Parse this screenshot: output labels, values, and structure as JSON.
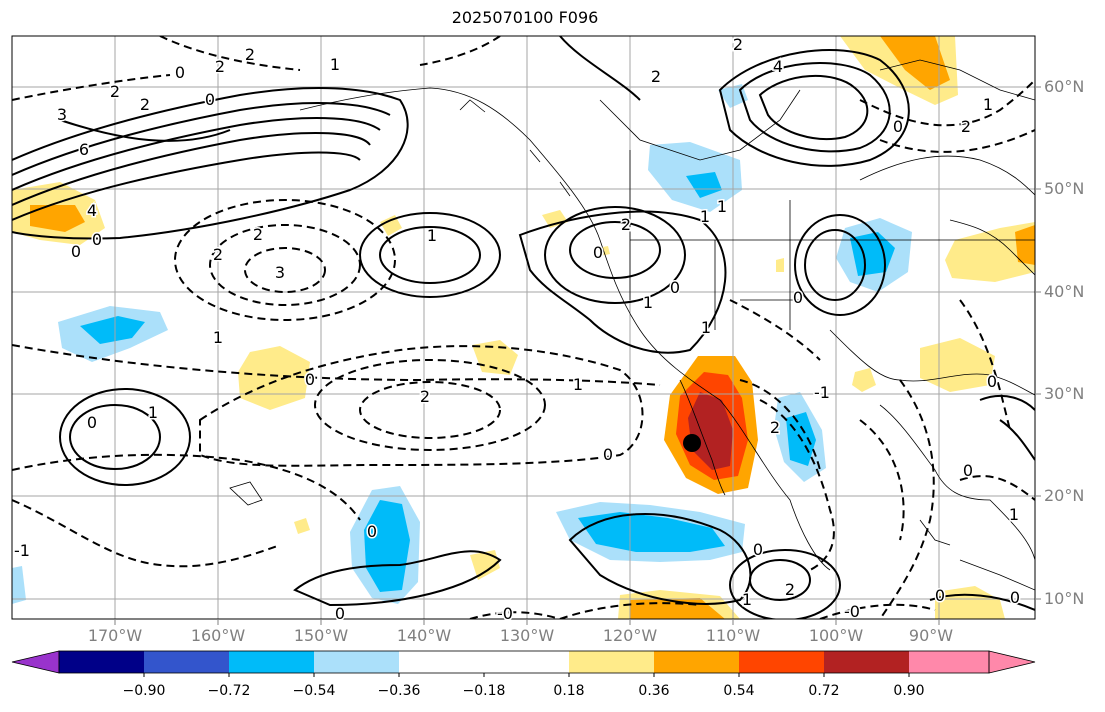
{
  "title": "2025070100 F096",
  "lat_labels": [
    "60°N",
    "50°N",
    "40°N",
    "30°N",
    "20°N",
    "10°N"
  ],
  "lon_labels": [
    "170°W",
    "160°W",
    "150°W",
    "140°W",
    "130°W",
    "120°W",
    "110°W",
    "100°W",
    "90°W"
  ],
  "colorbar": {
    "ticks": [
      "−0.90",
      "−0.72",
      "−0.54",
      "−0.36",
      "−0.18",
      "0.18",
      "0.36",
      "0.54",
      "0.72",
      "0.90"
    ],
    "colors": [
      "#9933cc",
      "#000088",
      "#3355cc",
      "#00bbf9",
      "#abe0fa",
      "#ffffff",
      "#ffeb8a",
      "#ffa500",
      "#ff4500",
      "#b22222",
      "#ff88aa"
    ]
  },
  "contour_labels": [
    "2",
    "2",
    "2",
    "2",
    "3",
    "2",
    "6",
    "4",
    "0",
    "0",
    "2",
    "3",
    "2",
    "1",
    "0",
    "0",
    "1",
    "1",
    "0",
    "2",
    "0",
    "1",
    "1",
    "-1",
    "0",
    "1",
    "0",
    "1",
    "1",
    "2",
    "0",
    "0",
    "0",
    "0",
    "1",
    "2",
    "0",
    "-0",
    "-0",
    "4",
    "2",
    "2",
    "1",
    "2",
    "0",
    "0",
    "0",
    "1",
    "1",
    "0",
    "-1",
    "0"
  ],
  "marker": "storm-center-dot"
}
